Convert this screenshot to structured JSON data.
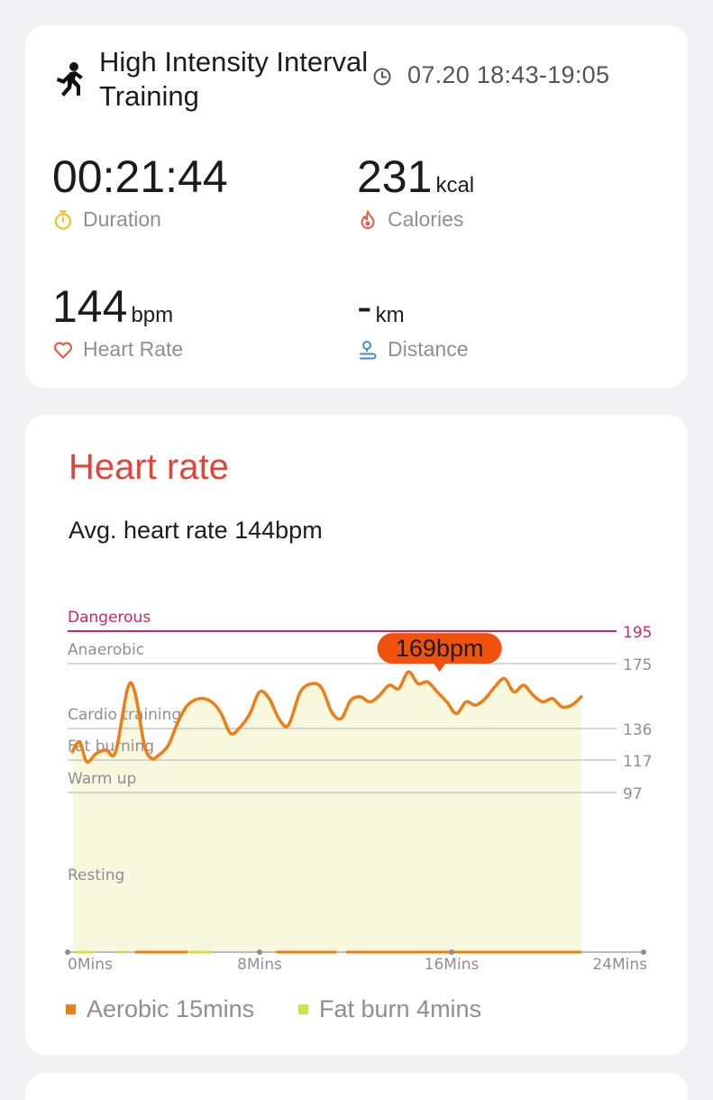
{
  "workout": {
    "icon": "running-person-icon",
    "title": "High Intensity Interval Training",
    "time_range": "07.20 18:43-19:05"
  },
  "stats": {
    "duration": {
      "value": "00:21:44",
      "unit": "",
      "label": "Duration",
      "icon": "stopwatch-icon",
      "color": "#f2c026"
    },
    "calories": {
      "value": "231",
      "unit": "kcal",
      "label": "Calories",
      "icon": "flame-icon",
      "color": "#ea5a4a"
    },
    "heart_rate": {
      "value": "144",
      "unit": "bpm",
      "label": "Heart Rate",
      "icon": "heart-icon",
      "color": "#ea5a4a"
    },
    "distance": {
      "value": "-",
      "unit": "km",
      "label": "Distance",
      "icon": "route-pin-icon",
      "color": "#3e8ed8"
    }
  },
  "heart_rate_section": {
    "title": "Heart rate",
    "average_text": "Avg. heart rate 144bpm",
    "peak_label": "169bpm"
  },
  "legend": [
    {
      "label": "Aerobic 15mins",
      "color": "#f07d13"
    },
    {
      "label": "Fat burn 4mins",
      "color": "#cfe14a"
    }
  ],
  "chart_data": {
    "type": "line",
    "x_unit": "minutes",
    "xlim": [
      0,
      24
    ],
    "ylim": [
      0,
      195
    ],
    "x_ticks": [
      "0Mins",
      "8Mins",
      "16Mins",
      "24Mins"
    ],
    "zones": [
      {
        "name": "Dangerous",
        "threshold": 195,
        "label": "195",
        "color": "#d6245e"
      },
      {
        "name": "Anaerobic",
        "threshold": 175,
        "label": "175",
        "color": "#c8c8c8"
      },
      {
        "name": "Cardio training",
        "threshold": 136,
        "label": "136",
        "color": "#c8c8c8"
      },
      {
        "name": "Fat burning",
        "threshold": 117,
        "label": "117",
        "color": "#c8c8c8"
      },
      {
        "name": "Warm up",
        "threshold": 97,
        "label": "97",
        "color": "#c8c8c8"
      },
      {
        "name": "Resting",
        "threshold": null,
        "label": "",
        "color": "#c8c8c8"
      }
    ],
    "series": [
      {
        "line_color": "#f07d13",
        "fill_color": "#f8f8df",
        "x": [
          0.2,
          0.5,
          0.8,
          1.2,
          1.6,
          2.0,
          2.5,
          2.8,
          3.2,
          3.5,
          3.8,
          4.2,
          4.6,
          5.0,
          5.5,
          6.0,
          6.4,
          6.8,
          7.2,
          7.6,
          8.0,
          8.4,
          8.8,
          9.2,
          9.7,
          10.2,
          10.6,
          11.0,
          11.4,
          11.8,
          12.2,
          12.6,
          13.0,
          13.4,
          13.8,
          14.2,
          14.6,
          15.0,
          15.4,
          15.8,
          16.2,
          16.6,
          17.0,
          17.4,
          17.8,
          18.2,
          18.6,
          19.0,
          19.4,
          19.8,
          20.2,
          20.6,
          21.0,
          21.4
        ],
        "y": [
          122,
          128,
          116,
          121,
          123,
          122,
          160,
          158,
          126,
          118,
          120,
          126,
          140,
          150,
          154,
          152,
          145,
          133,
          137,
          145,
          158,
          154,
          142,
          138,
          158,
          163,
          160,
          146,
          142,
          153,
          155,
          152,
          156,
          162,
          160,
          170,
          163,
          164,
          158,
          152,
          145,
          152,
          150,
          154,
          161,
          166,
          158,
          162,
          156,
          152,
          154,
          149,
          150,
          155
        ]
      }
    ],
    "peak": {
      "x": 15.5,
      "y": 169,
      "label": "169bpm"
    },
    "zone_strip": [
      {
        "from": 0.3,
        "to": 1.1,
        "zone": "fat_burn"
      },
      {
        "from": 2.1,
        "to": 2.4,
        "zone": "fat_burn"
      },
      {
        "from": 2.8,
        "to": 5.0,
        "zone": "aerobic"
      },
      {
        "from": 5.0,
        "to": 6.0,
        "zone": "fat_burn"
      },
      {
        "from": 8.7,
        "to": 11.2,
        "zone": "aerobic"
      },
      {
        "from": 11.6,
        "to": 21.4,
        "zone": "aerobic"
      }
    ]
  }
}
